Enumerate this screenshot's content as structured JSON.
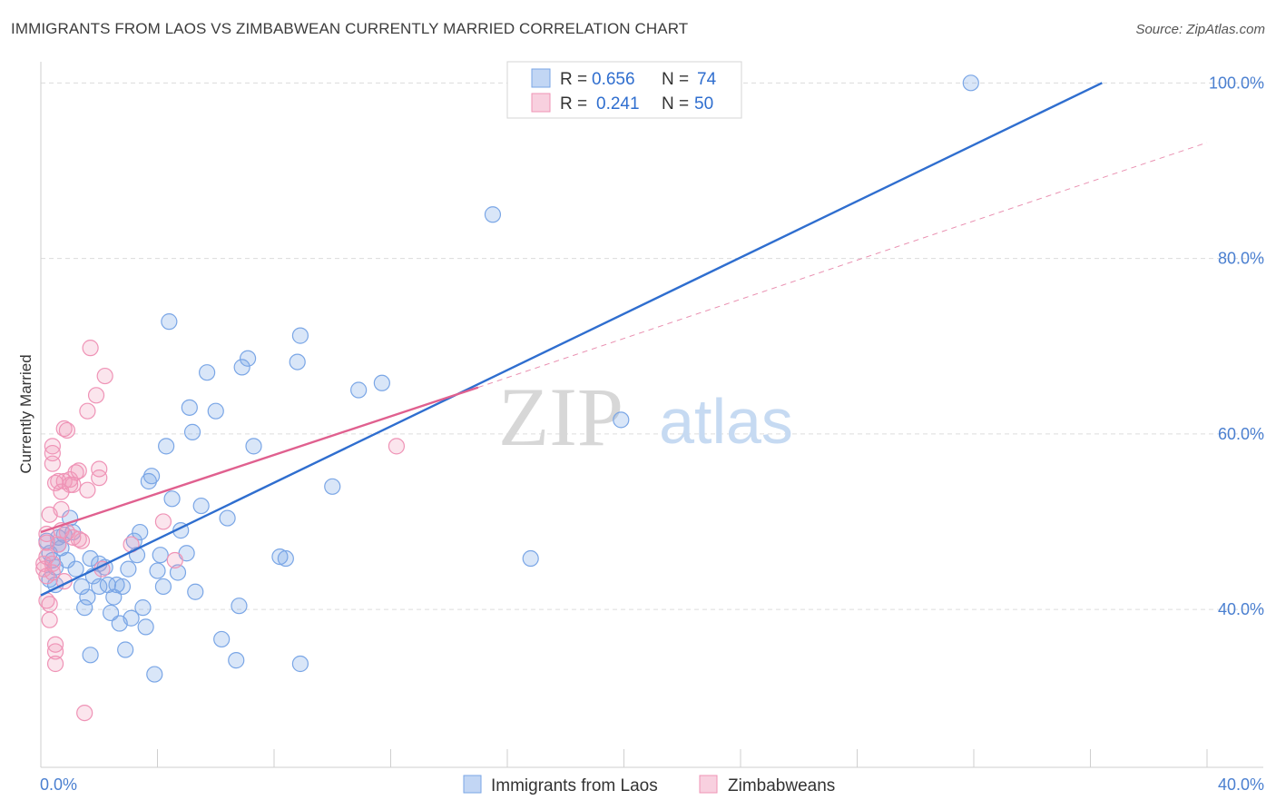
{
  "title": "IMMIGRANTS FROM LAOS VS ZIMBABWEAN CURRENTLY MARRIED CORRELATION CHART",
  "source": "Source: ZipAtlas.com",
  "watermark": {
    "zip": "ZIP",
    "atlas": "atlas"
  },
  "colors": {
    "blue": "#2f6ecf",
    "blue_fill": "rgba(120,165,230,0.28)",
    "blue_stroke": "#7aa6e6",
    "pink": "#e0608f",
    "pink_fill": "rgba(240,150,185,0.25)",
    "pink_stroke": "#ef93b6",
    "grid": "#dcdcdc",
    "tick_text": "#4a7fd0"
  },
  "legend": {
    "rows": [
      {
        "r_label": "R = ",
        "r_value": "0.656",
        "n_label": "N = ",
        "n_value": "74"
      },
      {
        "r_label": "R = ",
        "r_value": "0.241",
        "n_label": "N = ",
        "n_value": "50"
      }
    ]
  },
  "chart_data": {
    "type": "scatter",
    "title": "IMMIGRANTS FROM LAOS VS ZIMBABWEAN CURRENTLY MARRIED CORRELATION CHART",
    "xlabel": "",
    "ylabel": "Currently Married",
    "xlim": [
      0,
      40
    ],
    "ylim": [
      22,
      102
    ],
    "x_tick_labels": [
      "0.0%",
      "40.0%"
    ],
    "y_ticks": [
      40,
      60,
      80,
      100
    ],
    "y_tick_labels": [
      "40.0%",
      "60.0%",
      "80.0%",
      "100.0%"
    ],
    "series": [
      {
        "name": "Immigrants from Laos",
        "color": "blue",
        "R": 0.656,
        "N": 74,
        "trend": {
          "x0": 0.0,
          "y0": 41.6,
          "x1": 36.4,
          "y1": 100.0
        },
        "points": [
          [
            0.2,
            47.8
          ],
          [
            0.3,
            46.4
          ],
          [
            0.4,
            45.6
          ],
          [
            0.5,
            44.8
          ],
          [
            0.6,
            48.2
          ],
          [
            0.7,
            47.0
          ],
          [
            0.8,
            48.5
          ],
          [
            1.0,
            50.4
          ],
          [
            0.3,
            43.4
          ],
          [
            0.5,
            42.8
          ],
          [
            0.9,
            45.6
          ],
          [
            1.2,
            44.6
          ],
          [
            1.4,
            42.6
          ],
          [
            1.5,
            40.2
          ],
          [
            1.6,
            41.4
          ],
          [
            1.7,
            45.8
          ],
          [
            1.8,
            43.8
          ],
          [
            2.0,
            42.6
          ],
          [
            2.2,
            44.8
          ],
          [
            2.3,
            42.8
          ],
          [
            2.4,
            39.6
          ],
          [
            2.5,
            41.4
          ],
          [
            2.6,
            42.8
          ],
          [
            2.7,
            38.4
          ],
          [
            2.8,
            42.6
          ],
          [
            2.9,
            35.4
          ],
          [
            3.0,
            44.6
          ],
          [
            3.1,
            39.0
          ],
          [
            3.2,
            47.8
          ],
          [
            3.3,
            46.2
          ],
          [
            3.4,
            48.8
          ],
          [
            3.5,
            40.2
          ],
          [
            3.6,
            38.0
          ],
          [
            3.7,
            54.6
          ],
          [
            3.8,
            55.2
          ],
          [
            3.9,
            32.6
          ],
          [
            4.0,
            44.4
          ],
          [
            4.1,
            46.2
          ],
          [
            4.2,
            42.6
          ],
          [
            4.3,
            58.6
          ],
          [
            4.4,
            72.8
          ],
          [
            4.5,
            52.6
          ],
          [
            4.7,
            44.2
          ],
          [
            4.8,
            49.0
          ],
          [
            5.0,
            46.4
          ],
          [
            5.1,
            63.0
          ],
          [
            5.2,
            60.2
          ],
          [
            5.3,
            42.0
          ],
          [
            5.5,
            51.8
          ],
          [
            5.7,
            67.0
          ],
          [
            6.0,
            62.6
          ],
          [
            6.2,
            36.6
          ],
          [
            6.4,
            50.4
          ],
          [
            6.7,
            34.2
          ],
          [
            6.8,
            40.4
          ],
          [
            6.9,
            67.6
          ],
          [
            7.1,
            68.6
          ],
          [
            7.3,
            58.6
          ],
          [
            8.2,
            46.0
          ],
          [
            8.4,
            45.8
          ],
          [
            8.8,
            68.2
          ],
          [
            8.9,
            71.2
          ],
          [
            8.9,
            33.8
          ],
          [
            10.0,
            54.0
          ],
          [
            10.9,
            65.0
          ],
          [
            11.7,
            65.8
          ],
          [
            1.7,
            34.8
          ],
          [
            15.5,
            85.0
          ],
          [
            19.9,
            61.6
          ],
          [
            16.8,
            45.8
          ],
          [
            31.9,
            100.0
          ],
          [
            0.6,
            47.4
          ],
          [
            1.1,
            48.8
          ],
          [
            2.0,
            45.2
          ]
        ]
      },
      {
        "name": "Zimbabweans",
        "color": "pink",
        "R": 0.241,
        "N": 50,
        "trend": {
          "x0": 0.0,
          "y0": 48.8,
          "x1": 15.0,
          "y1": 65.3
        },
        "trend_extension": {
          "x0": 15.0,
          "y0": 65.3,
          "x1": 40.0,
          "y1": 93.2
        },
        "points": [
          [
            0.1,
            45.2
          ],
          [
            0.1,
            44.6
          ],
          [
            0.2,
            46.0
          ],
          [
            0.2,
            47.6
          ],
          [
            0.2,
            48.6
          ],
          [
            0.2,
            43.8
          ],
          [
            0.3,
            50.8
          ],
          [
            0.3,
            40.6
          ],
          [
            0.3,
            38.8
          ],
          [
            0.4,
            45.2
          ],
          [
            0.4,
            44.2
          ],
          [
            0.4,
            56.6
          ],
          [
            0.4,
            58.6
          ],
          [
            0.4,
            57.8
          ],
          [
            0.5,
            36.0
          ],
          [
            0.5,
            35.2
          ],
          [
            0.5,
            33.8
          ],
          [
            0.5,
            54.4
          ],
          [
            0.6,
            54.6
          ],
          [
            0.6,
            47.4
          ],
          [
            0.7,
            53.4
          ],
          [
            0.7,
            51.4
          ],
          [
            0.8,
            54.6
          ],
          [
            0.8,
            60.6
          ],
          [
            0.8,
            43.2
          ],
          [
            0.9,
            48.8
          ],
          [
            0.9,
            60.4
          ],
          [
            1.0,
            54.2
          ],
          [
            1.0,
            54.8
          ],
          [
            1.1,
            48.2
          ],
          [
            1.1,
            54.2
          ],
          [
            1.2,
            55.6
          ],
          [
            1.3,
            55.8
          ],
          [
            1.4,
            47.8
          ],
          [
            1.6,
            62.6
          ],
          [
            1.6,
            53.6
          ],
          [
            1.7,
            69.8
          ],
          [
            1.9,
            64.4
          ],
          [
            2.0,
            55.0
          ],
          [
            2.0,
            56.0
          ],
          [
            2.1,
            44.6
          ],
          [
            2.2,
            66.6
          ],
          [
            3.1,
            47.4
          ],
          [
            4.2,
            50.0
          ],
          [
            4.6,
            45.6
          ],
          [
            12.2,
            58.6
          ],
          [
            1.5,
            28.2
          ],
          [
            0.2,
            41.0
          ],
          [
            0.7,
            49.0
          ],
          [
            1.3,
            48.0
          ]
        ]
      }
    ]
  },
  "bottom_legend": [
    {
      "label": "Immigrants from Laos",
      "color": "blue"
    },
    {
      "label": "Zimbabweans",
      "color": "pink"
    }
  ]
}
